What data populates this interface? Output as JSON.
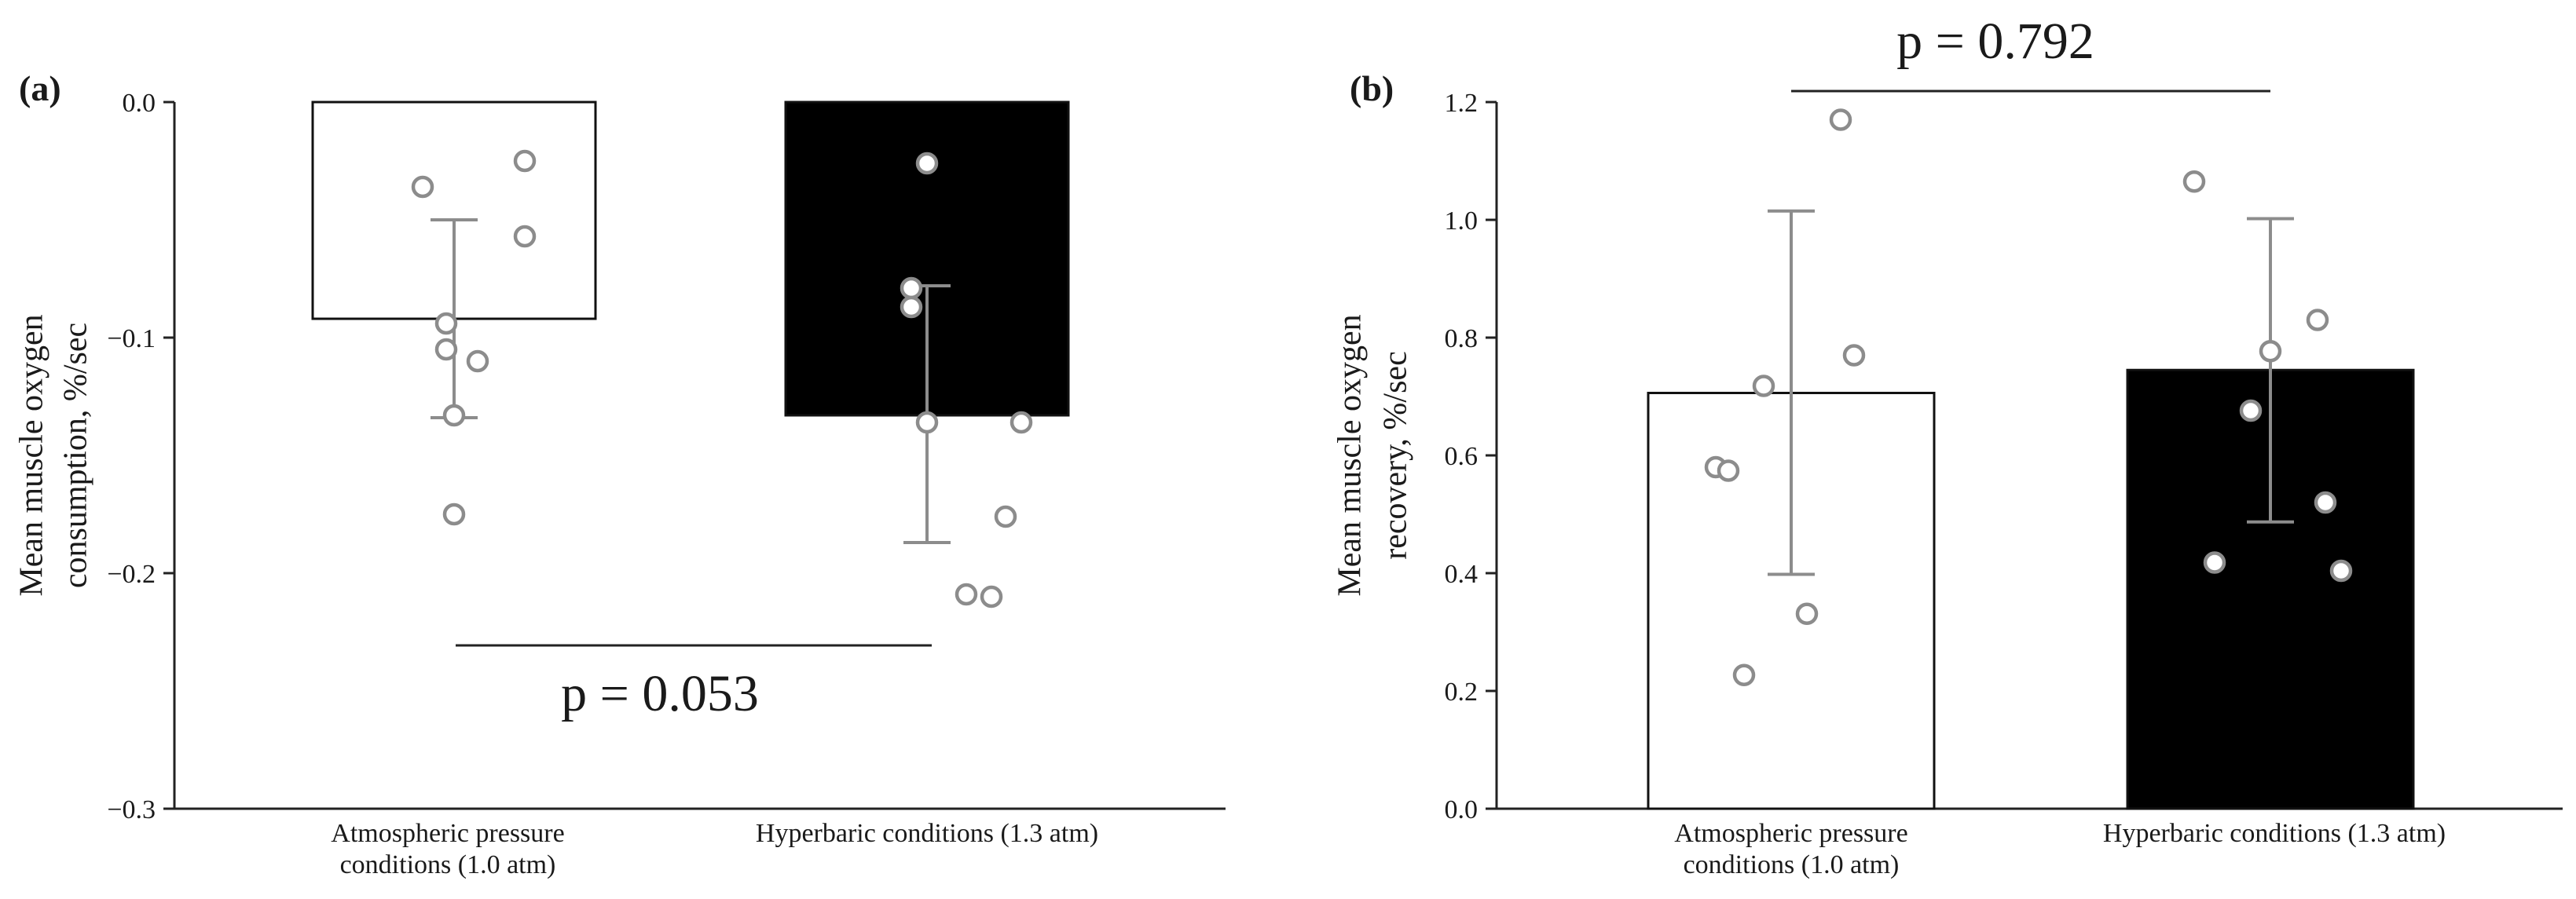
{
  "figure": {
    "panels": [
      {
        "panel_label": "(a)"
      },
      {
        "panel_label": "(b)"
      }
    ]
  },
  "chart_data": [
    {
      "type": "bar",
      "panel": "(a)",
      "categories": [
        [
          "Atmospheric pressure",
          "conditions (1.0 atm)"
        ],
        [
          "Hyperbaric conditions (1.3 atm)"
        ]
      ],
      "values": [
        -0.092,
        -0.133
      ],
      "error_upper": [
        -0.05,
        -0.078
      ],
      "error_lower": [
        -0.134,
        -0.187
      ],
      "bar_colors": [
        "#ffffff",
        "#000000"
      ],
      "points": [
        [
          -0.036,
          -0.025,
          -0.057,
          -0.094,
          -0.105,
          -0.11,
          -0.133,
          -0.175
        ],
        [
          -0.026,
          -0.079,
          -0.087,
          -0.136,
          -0.136,
          -0.176,
          -0.209,
          -0.21
        ]
      ],
      "ylabel": [
        "Mean muscle oxygen",
        "consumption, %/sec"
      ],
      "ylim": [
        -0.3,
        0.0
      ],
      "yticks": [
        0.0,
        -0.1,
        -0.2,
        -0.3
      ],
      "ytick_labels": [
        "0.0",
        "−0.1",
        "−0.2",
        "−0.3"
      ],
      "p_value_label": "p = 0.053",
      "p_value_position": "below"
    },
    {
      "type": "bar",
      "panel": "(b)",
      "categories": [
        [
          "Atmospheric pressure",
          "conditions (1.0 atm)"
        ],
        [
          "Hyperbaric conditions (1.3 atm)"
        ]
      ],
      "values": [
        0.706,
        0.745
      ],
      "error_upper": [
        1.015,
        1.002
      ],
      "error_lower": [
        0.398,
        0.487
      ],
      "bar_colors": [
        "#ffffff",
        "#000000"
      ],
      "points": [
        [
          1.17,
          0.77,
          0.718,
          0.58,
          0.574,
          0.331,
          0.227
        ],
        [
          1.065,
          0.83,
          0.777,
          0.676,
          0.52,
          0.418,
          0.404
        ]
      ],
      "ylabel": [
        "Mean muscle oxygen",
        "recovery, %/sec"
      ],
      "ylim": [
        0.0,
        1.2
      ],
      "yticks": [
        0.0,
        0.2,
        0.4,
        0.6,
        0.8,
        1.0,
        1.2
      ],
      "ytick_labels": [
        "0.0",
        "0.2",
        "0.4",
        "0.6",
        "0.8",
        "1.0",
        "1.2"
      ],
      "p_value_label": "p = 0.792",
      "p_value_position": "above"
    }
  ]
}
